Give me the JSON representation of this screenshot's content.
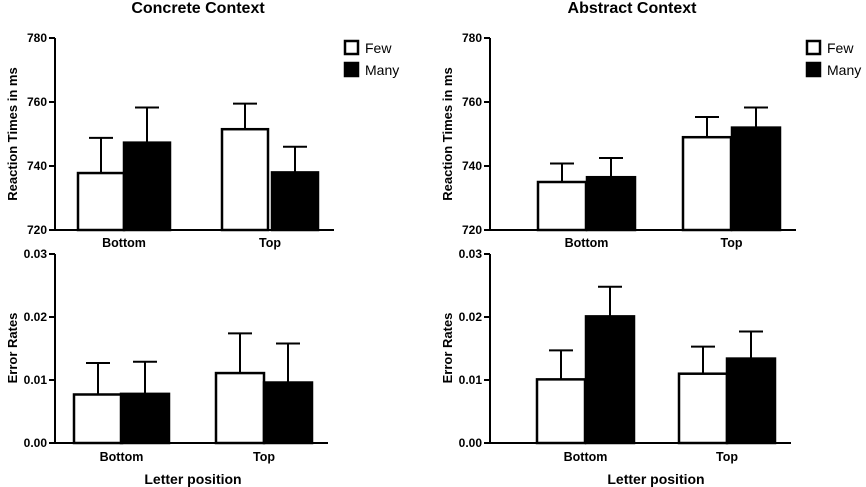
{
  "chart_data": [
    {
      "id": "rt-concrete",
      "type": "bar",
      "panel_title": "Concrete Context",
      "ylabel": "Reaction Times in ms",
      "xlabel": "",
      "categories": [
        "Bottom",
        "Top"
      ],
      "ylim": [
        720,
        780
      ],
      "yticks": [
        "720",
        "740",
        "760",
        "780"
      ],
      "ytick_values": [
        720,
        740,
        760,
        780
      ],
      "series": [
        {
          "name": "Few",
          "values": [
            737.8,
            751.5
          ],
          "errors": [
            11.0,
            8.0
          ]
        },
        {
          "name": "Many",
          "values": [
            747.3,
            738.0
          ],
          "errors": [
            11.0,
            8.0
          ]
        }
      ],
      "legend": "top-right"
    },
    {
      "id": "rt-abstract",
      "type": "bar",
      "panel_title": "Abstract Context",
      "ylabel": "Reaction Times in ms",
      "xlabel": "",
      "categories": [
        "Bottom",
        "Top"
      ],
      "ylim": [
        720,
        780
      ],
      "yticks": [
        "720",
        "740",
        "760",
        "780"
      ],
      "ytick_values": [
        720,
        740,
        760,
        780
      ],
      "series": [
        {
          "name": "Few",
          "values": [
            735.0,
            749.0
          ],
          "errors": [
            5.8,
            6.3
          ]
        },
        {
          "name": "Many",
          "values": [
            736.5,
            752.0
          ],
          "errors": [
            6.0,
            6.3
          ]
        }
      ],
      "legend": "top-right"
    },
    {
      "id": "err-concrete",
      "type": "bar",
      "panel_title": "",
      "ylabel": "Error Rates",
      "xlabel": "Letter position",
      "categories": [
        "Bottom",
        "Top"
      ],
      "ylim": [
        0,
        0.03
      ],
      "yticks": [
        "0.00",
        "0.01",
        "0.02",
        "0.03"
      ],
      "ytick_values": [
        0,
        0.01,
        0.02,
        0.03
      ],
      "series": [
        {
          "name": "Few",
          "values": [
            0.0077,
            0.0111
          ],
          "errors": [
            0.005,
            0.0063
          ]
        },
        {
          "name": "Many",
          "values": [
            0.0078,
            0.0096
          ],
          "errors": [
            0.0051,
            0.0062
          ]
        }
      ]
    },
    {
      "id": "err-abstract",
      "type": "bar",
      "panel_title": "",
      "ylabel": "Error Rates",
      "xlabel": "Letter position",
      "categories": [
        "Bottom",
        "Top"
      ],
      "ylim": [
        0,
        0.03
      ],
      "yticks": [
        "0.00",
        "0.01",
        "0.02",
        "0.03"
      ],
      "ytick_values": [
        0,
        0.01,
        0.02,
        0.03
      ],
      "series": [
        {
          "name": "Few",
          "values": [
            0.0101,
            0.011
          ],
          "errors": [
            0.0046,
            0.0043
          ]
        },
        {
          "name": "Many",
          "values": [
            0.0201,
            0.0134
          ],
          "errors": [
            0.0047,
            0.0043
          ]
        }
      ]
    }
  ],
  "colors": {
    "few_fill": "#ffffff",
    "many_fill": "#000000",
    "stroke": "#000000"
  }
}
